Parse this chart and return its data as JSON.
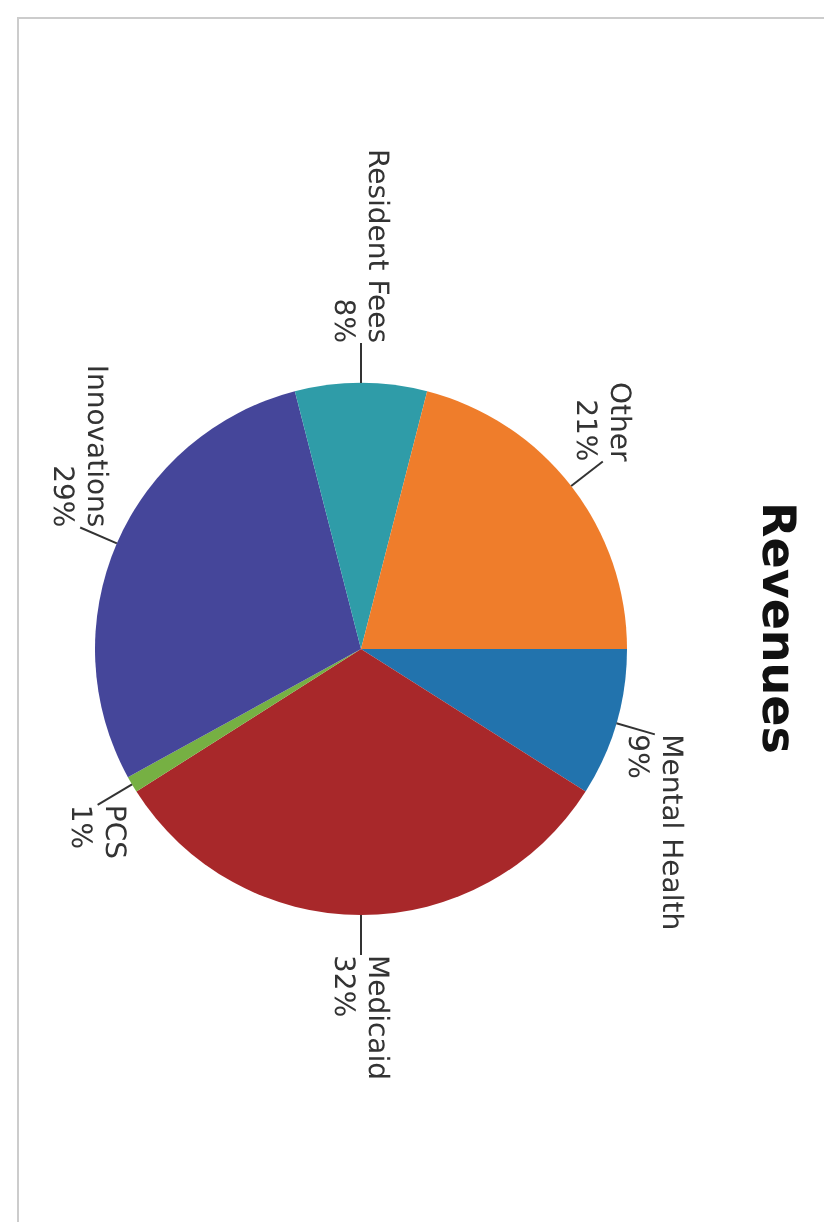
{
  "chart_data": {
    "type": "pie",
    "title": "Revenues",
    "categories": [
      "Mental Health",
      "Medicaid",
      "PCS",
      "Innovations",
      "Resident Fees",
      "Other"
    ],
    "values": [
      9,
      32,
      1,
      29,
      8,
      21
    ],
    "value_labels": [
      "9%",
      "32%",
      "1%",
      "29%",
      "8%",
      "21%"
    ],
    "colors": [
      "#2273ad",
      "#a8282a",
      "#76b043",
      "#45469a",
      "#2f9ca8",
      "#ef7d2b"
    ],
    "legend": false
  }
}
